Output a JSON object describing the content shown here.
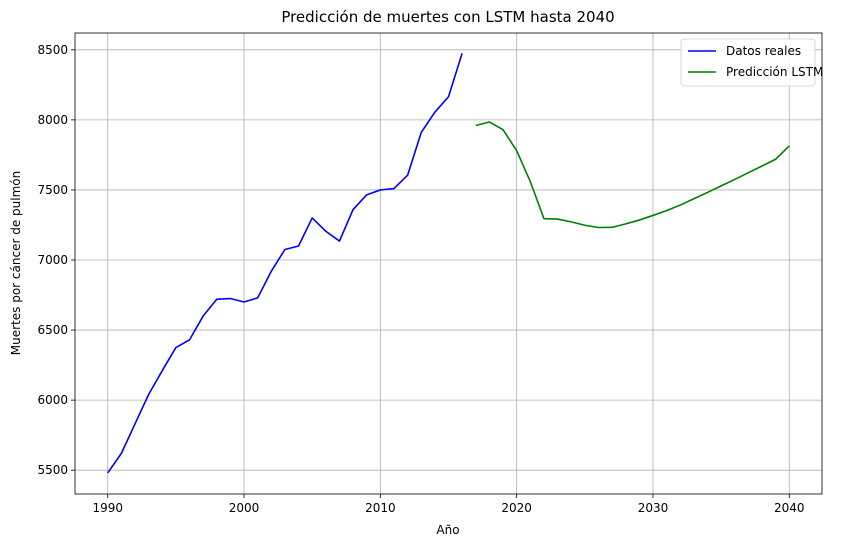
{
  "chart_data": {
    "type": "line",
    "title": "Predicción de muertes con LSTM hasta 2040",
    "xlabel": "Año",
    "ylabel": "Muertes por cáncer de pulmón",
    "xlim": [
      1987.6,
      2042.4
    ],
    "ylim": [
      5330,
      8620
    ],
    "xticks": [
      1990,
      2000,
      2010,
      2020,
      2030,
      2040
    ],
    "yticks": [
      5500,
      6000,
      6500,
      7000,
      7500,
      8000,
      8500
    ],
    "grid": true,
    "legend_position": "top-right",
    "series": [
      {
        "name": "Datos reales",
        "color": "#0000ff",
        "x": [
          1990,
          1991,
          1992,
          1993,
          1994,
          1995,
          1996,
          1997,
          1998,
          1999,
          2000,
          2001,
          2002,
          2003,
          2004,
          2005,
          2006,
          2007,
          2008,
          2009,
          2010,
          2011,
          2012,
          2013,
          2014,
          2015,
          2016
        ],
        "y": [
          5480,
          5620,
          5830,
          6040,
          6210,
          6375,
          6430,
          6600,
          6720,
          6725,
          6700,
          6730,
          6920,
          7075,
          7100,
          7300,
          7205,
          7135,
          7360,
          7465,
          7500,
          7510,
          7605,
          7910,
          8055,
          8165,
          8475
        ]
      },
      {
        "name": "Predicción LSTM",
        "color": "#008000",
        "x": [
          2017,
          2018,
          2019,
          2020,
          2021,
          2022,
          2023,
          2024,
          2025,
          2026,
          2027,
          2028,
          2029,
          2030,
          2031,
          2032,
          2033,
          2034,
          2035,
          2036,
          2037,
          2038,
          2039,
          2040
        ],
        "y": [
          7960,
          7985,
          7930,
          7780,
          7560,
          7295,
          7292,
          7272,
          7248,
          7232,
          7233,
          7258,
          7285,
          7318,
          7352,
          7392,
          7437,
          7482,
          7529,
          7575,
          7623,
          7671,
          7719,
          7815
        ]
      }
    ]
  }
}
